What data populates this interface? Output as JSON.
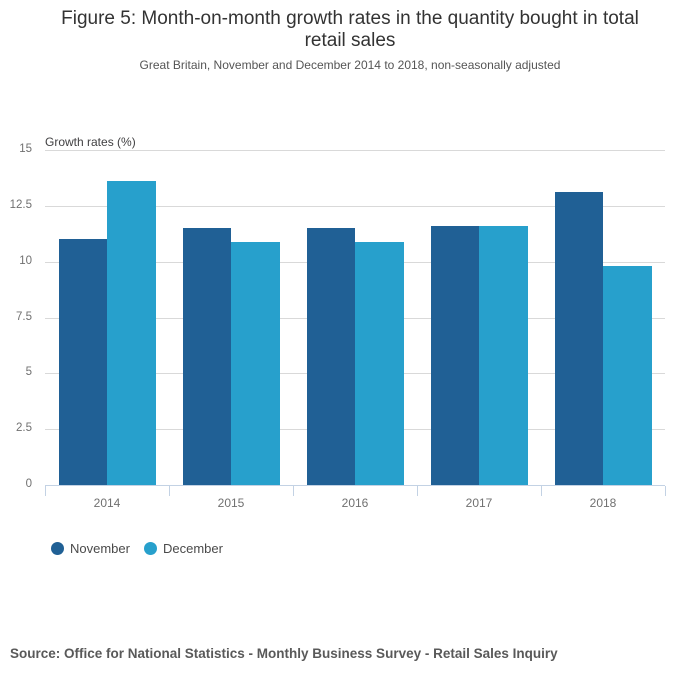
{
  "header": {
    "title_lines": [
      "Figure 5: Month-on-month growth rates in the quantity bought in total",
      "retail sales"
    ],
    "subtitle": "Great Britain, November and December 2014 to 2018, non-seasonally adjusted"
  },
  "chart_data": {
    "type": "bar",
    "title": "Figure 5: Month-on-month growth rates in the quantity bought in total retail sales",
    "subtitle": "Great Britain, November and December 2014 to 2018, non-seasonally adjusted",
    "axis_title": "Growth rates (%)",
    "xlabel": "",
    "ylabel": "Growth rates (%)",
    "categories": [
      "2014",
      "2015",
      "2016",
      "2017",
      "2018"
    ],
    "series": [
      {
        "name": "November",
        "color": "#206095",
        "values": [
          11.0,
          11.5,
          11.5,
          11.6,
          13.1
        ]
      },
      {
        "name": "December",
        "color": "#27A0CC",
        "values": [
          13.6,
          10.9,
          10.9,
          11.6,
          9.8
        ]
      }
    ],
    "ylim": [
      0,
      15
    ],
    "y_ticks": [
      0,
      2.5,
      5,
      7.5,
      10,
      12.5,
      15
    ],
    "y_tick_labels": [
      "0",
      "2.5",
      "5",
      "7.5",
      "10",
      "12.5",
      "15"
    ],
    "grid": true,
    "legend_position": "bottom-left"
  },
  "footer": {
    "source": "Source: Office for National Statistics - Monthly Business Survey - Retail Sales Inquiry"
  },
  "colors": {
    "november": "#206095",
    "december": "#27A0CC",
    "gridline": "#d9d9d9",
    "axis_line": "#c3d2e4",
    "title_text": "#333333",
    "subtitle_text": "#555555",
    "tick_text": "#707070"
  }
}
